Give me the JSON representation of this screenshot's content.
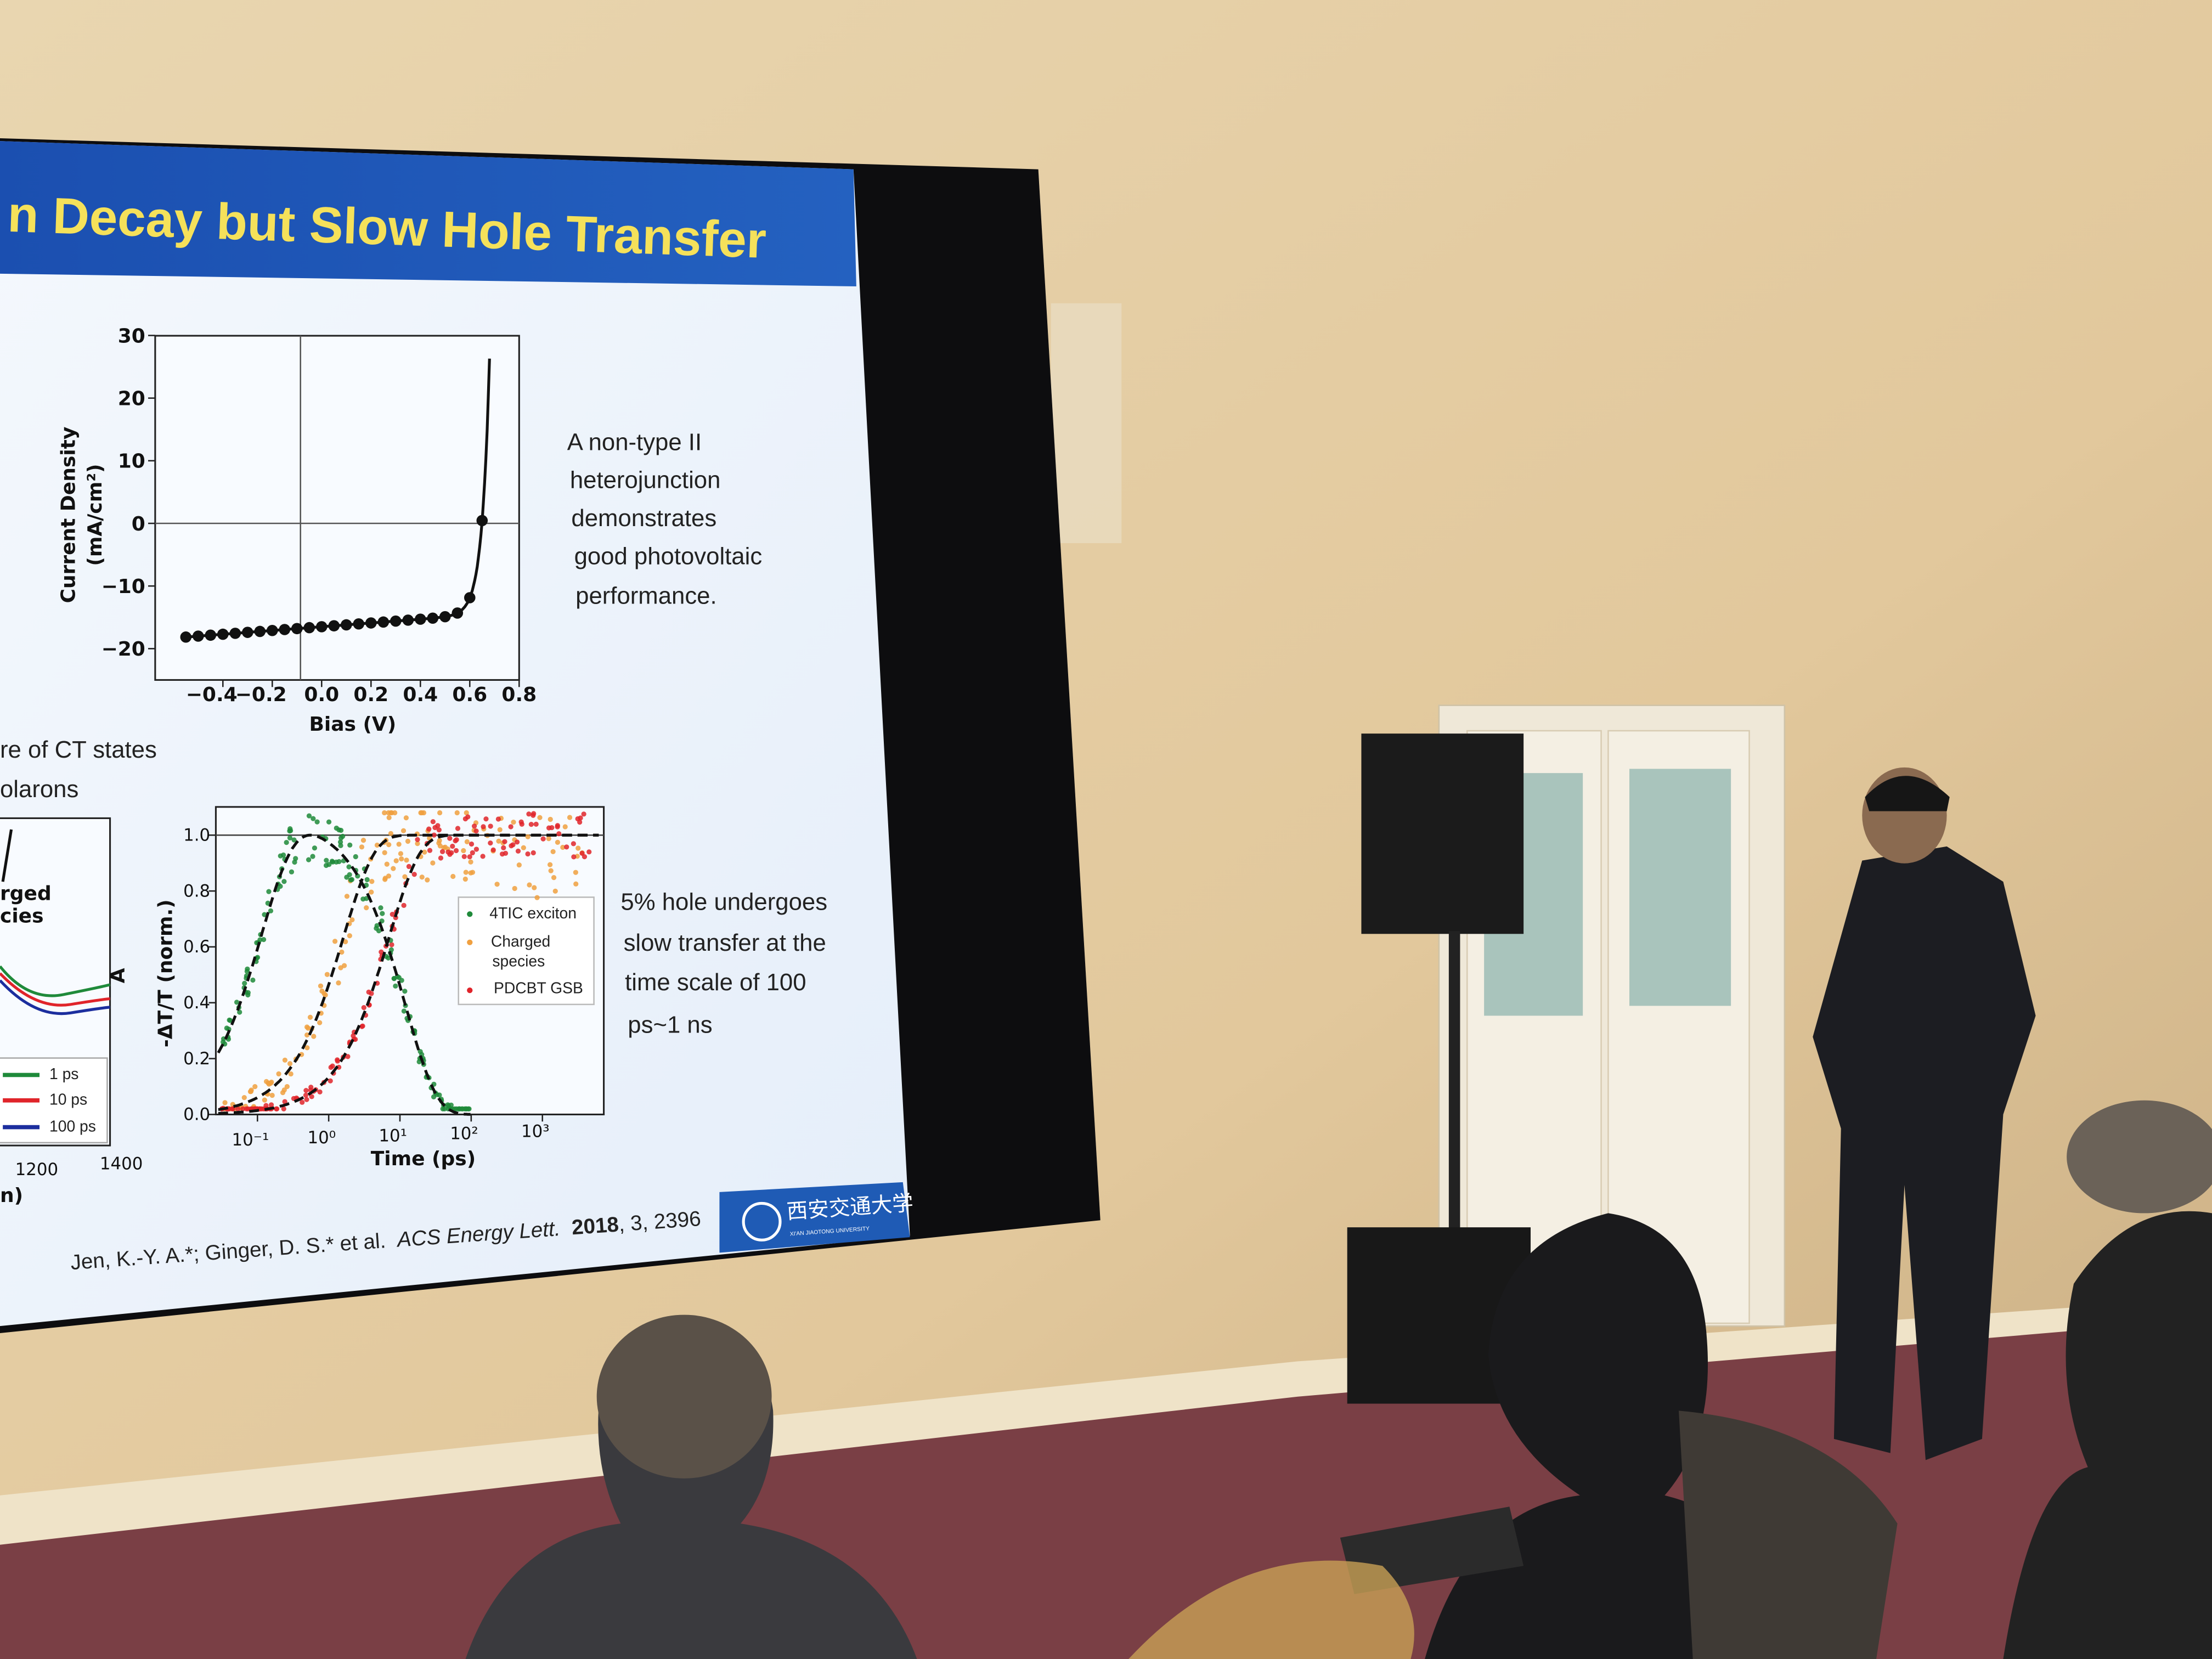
{
  "slide": {
    "title": "n Decay but Slow Hole Transfer",
    "jv_plot": {
      "y_label": "Current Density",
      "y_unit": "(mA/cm²)",
      "x_label": "Bias (V)",
      "y_ticks": [
        "30",
        "20",
        "10",
        "0",
        "−10",
        "−20"
      ],
      "x_ticks": [
        "−0.4",
        "−0.2",
        "0.0",
        "0.2",
        "0.4",
        "0.6",
        "0.8"
      ]
    },
    "jv_caption": [
      "A non-type II",
      "heterojunction",
      "demonstrates",
      "good photovoltaic",
      "performance."
    ],
    "left_fragment": {
      "lines": [
        "re of CT states",
        "olarons"
      ],
      "annotation": [
        "rged",
        "cies"
      ],
      "y_label": "A",
      "legend": [
        "1 ps",
        "10 ps",
        "100 ps"
      ],
      "x_ticks": [
        "1200",
        "1400"
      ],
      "x_label": "n)"
    },
    "ta_plot": {
      "y_label": "-ΔT/T (norm.)",
      "x_label": "Time (ps)",
      "y_ticks": [
        "1.0",
        "0.8",
        "0.6",
        "0.4",
        "0.2",
        "0.0"
      ],
      "x_ticks": [
        "10⁻¹",
        "10⁰",
        "10¹",
        "10²",
        "10³"
      ],
      "legend": [
        "4TIC exciton",
        "Charged",
        "species",
        "PDCBT GSB"
      ]
    },
    "ta_caption": [
      "5% hole undergoes",
      "slow transfer at the",
      "time scale of 100",
      "ps~1 ns"
    ],
    "citation": {
      "authors": "Jen, K.-Y. A.*; Ginger, D. S.* et al.",
      "journal": "ACS Energy Lett.",
      "year": "2018",
      "rest": ", 3, 2396"
    },
    "logo": {
      "name": "西安交通大学",
      "sub": "XI'AN JIAOTONG UNIVERSITY"
    }
  }
}
